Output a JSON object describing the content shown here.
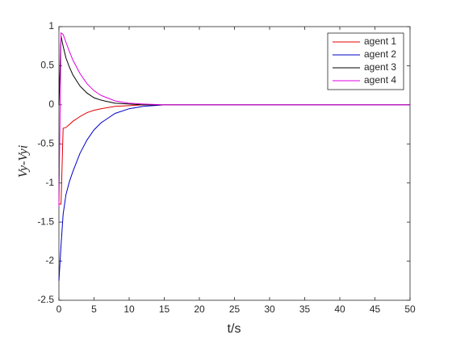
{
  "chart_data": {
    "type": "line",
    "x_label": "t/s",
    "y_label": "Vy-Vyi",
    "x": [
      0,
      0.3,
      0.6,
      1,
      1.5,
      2,
      3,
      4,
      5,
      6,
      8,
      10,
      12,
      15,
      20,
      30,
      40,
      50
    ],
    "series": [
      {
        "name": "agent 1",
        "color": "#e00000",
        "values": [
          -1.27,
          -1.27,
          -0.3,
          -0.29,
          -0.25,
          -0.21,
          -0.15,
          -0.1,
          -0.07,
          -0.05,
          -0.02,
          -0.01,
          0,
          0,
          0,
          0,
          0,
          0
        ]
      },
      {
        "name": "agent 2",
        "color": "#0000c8",
        "values": [
          -2.25,
          -1.8,
          -1.4,
          -1.15,
          -0.98,
          -0.85,
          -0.62,
          -0.45,
          -0.32,
          -0.23,
          -0.11,
          -0.05,
          -0.02,
          0,
          0,
          0,
          0,
          0
        ]
      },
      {
        "name": "agent 3",
        "color": "#000000",
        "values": [
          0,
          0.88,
          0.75,
          0.6,
          0.48,
          0.38,
          0.24,
          0.15,
          0.09,
          0.06,
          0.02,
          0.01,
          0,
          0,
          0,
          0,
          0,
          0
        ]
      },
      {
        "name": "agent 4",
        "color": "#e000e0",
        "values": [
          -1.3,
          0.92,
          0.9,
          0.8,
          0.68,
          0.57,
          0.4,
          0.27,
          0.18,
          0.12,
          0.05,
          0.02,
          0.01,
          0,
          0,
          0,
          0,
          0
        ]
      }
    ],
    "xlim": [
      0,
      50
    ],
    "xticks": [
      0,
      5,
      10,
      15,
      20,
      25,
      30,
      35,
      40,
      45,
      50
    ],
    "ylim": [
      -2.5,
      1
    ],
    "yticks": [
      -2.5,
      -2,
      -1.5,
      -1,
      -0.5,
      0,
      0.5,
      1
    ],
    "grid": false,
    "legend": "upper right"
  }
}
